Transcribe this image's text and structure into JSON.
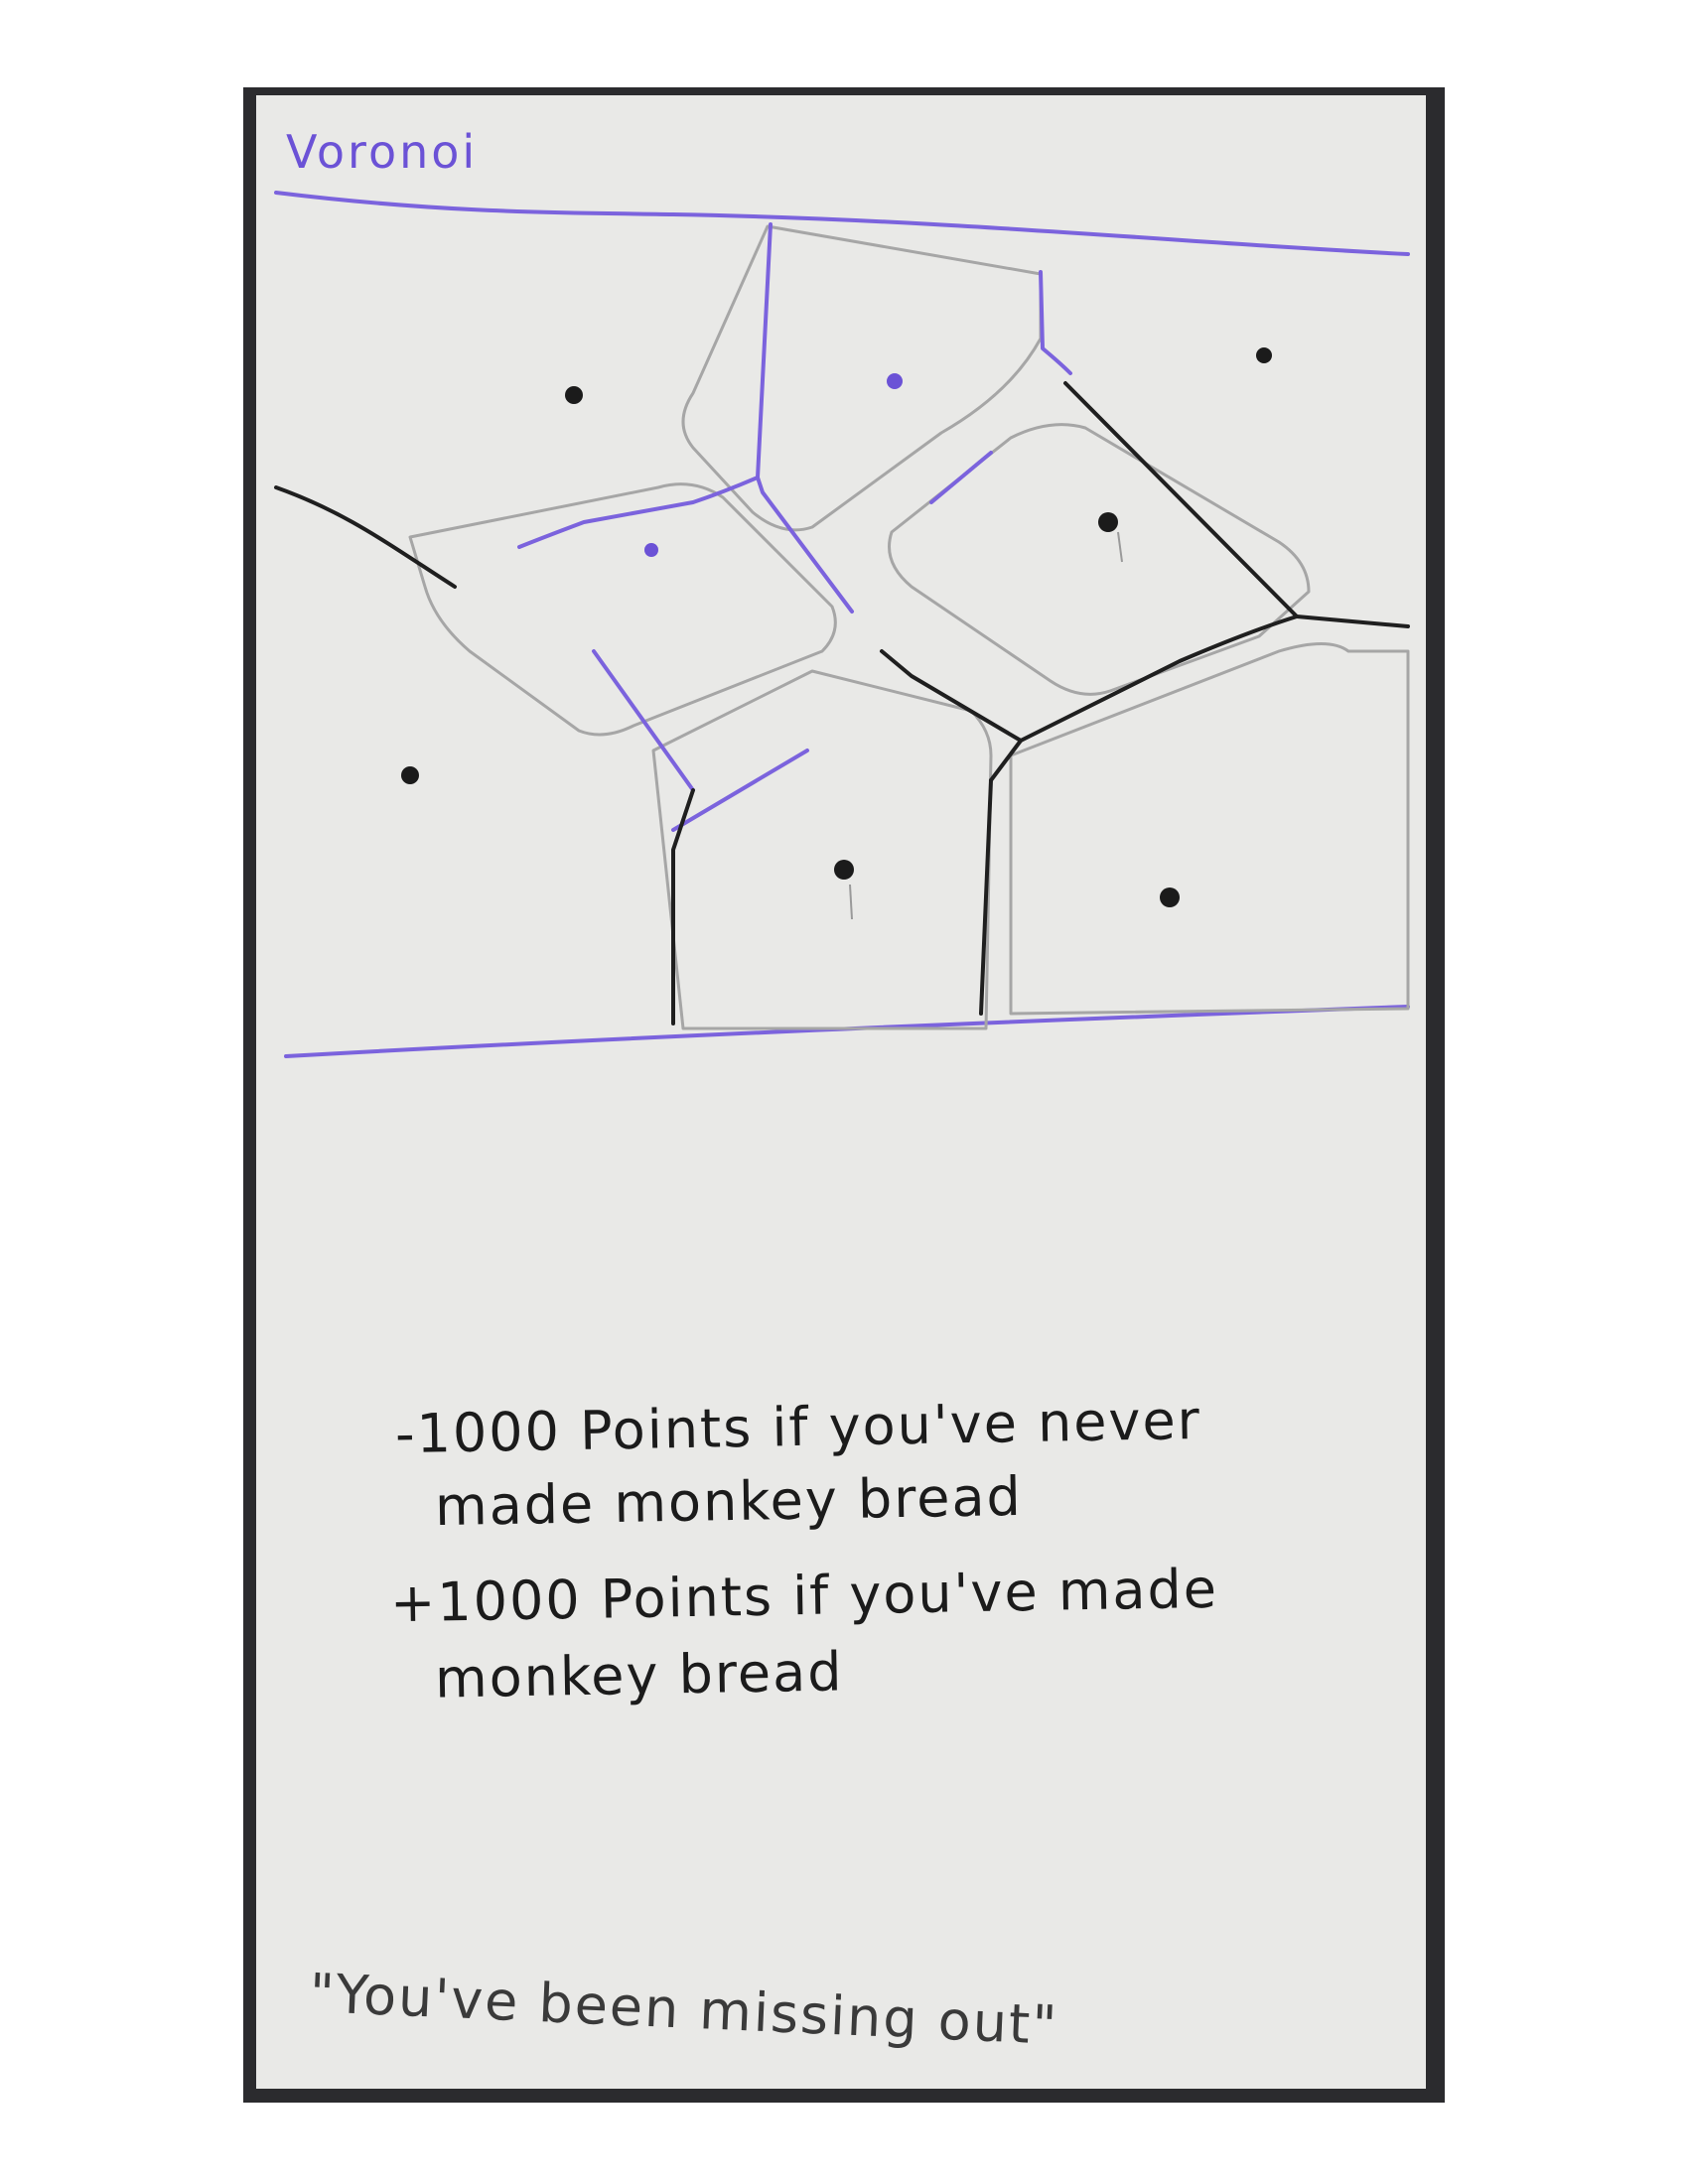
{
  "card": {
    "title": "Voronoi",
    "rules": [
      "-1000 Points if you've never",
      "made monkey bread",
      "+1000 Points if you've made",
      "monkey bread"
    ],
    "quote": "\"You've been missing out\""
  },
  "colors": {
    "purple_ink": "#6b52d6",
    "black_ink": "#1b1b1b",
    "pencil": "#9a9a9a",
    "card_paper": "#e9e9e7",
    "frame": "#2b2b2e"
  }
}
